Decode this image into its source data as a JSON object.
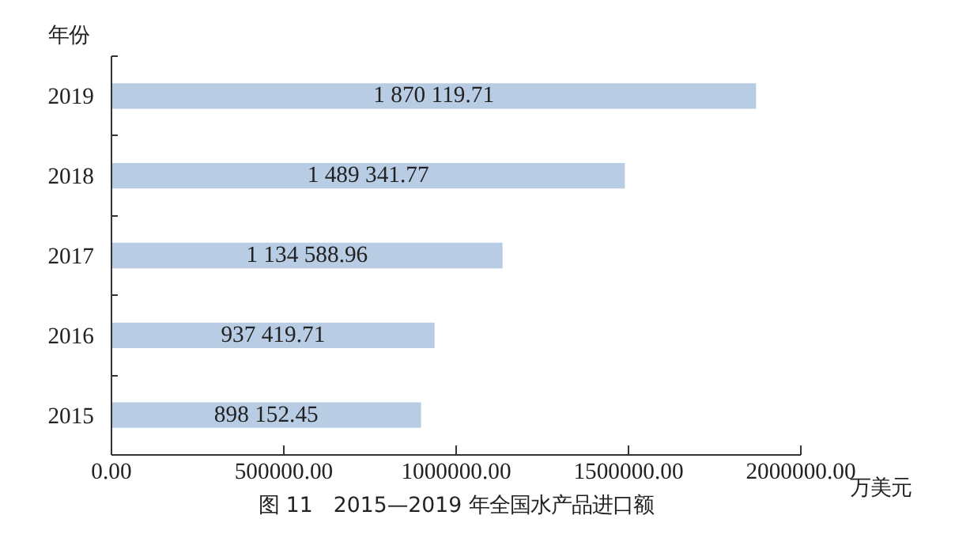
{
  "chart_data": {
    "type": "bar",
    "orientation": "horizontal",
    "title": "图 11　2015—2019 年全国水产品进口额",
    "xlabel": "万美元",
    "ylabel": "年份",
    "categories": [
      "2019",
      "2018",
      "2017",
      "2016",
      "2015"
    ],
    "values": [
      1870119.71,
      1489341.77,
      1134588.96,
      937419.71,
      898152.45
    ],
    "value_labels": [
      "1 870 119.71",
      "1 489 341.77",
      "1 134 588.96",
      "937 419.71",
      "898 152.45"
    ],
    "color": "#b8cce4",
    "xlim": [
      0,
      2000000
    ],
    "xticks": [
      {
        "value": 0,
        "label": "0.00"
      },
      {
        "value": 500000,
        "label": "500000.00"
      },
      {
        "value": 1000000,
        "label": "1000000.00"
      },
      {
        "value": 1500000,
        "label": "1500000.00"
      },
      {
        "value": 2000000,
        "label": "2000000.00"
      }
    ],
    "grid": false
  }
}
